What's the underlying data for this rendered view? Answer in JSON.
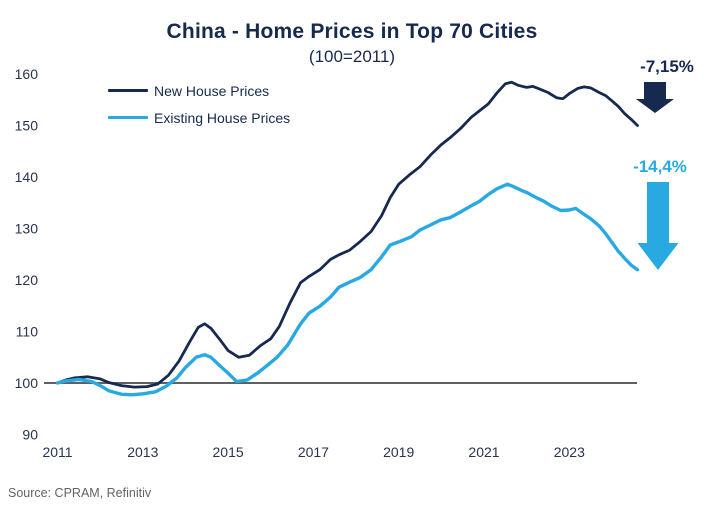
{
  "colors": {
    "navy": "#16294e",
    "cyan": "#29a9e1",
    "baseline_gray": "#5f6062",
    "axis_text": "#27334f",
    "source_text": "#646464",
    "background": "#ffffff"
  },
  "source": "Source: CPRAM, Refinitiv",
  "chart_data": {
    "type": "line",
    "title": "China - Home Prices in Top 70 Cities",
    "subtitle": "(100=2011)",
    "xlabel": "",
    "ylabel": "",
    "xlim": [
      2010.85,
      2024.85
    ],
    "ylim": [
      90,
      160
    ],
    "xticks": [
      2011,
      2013,
      2015,
      2017,
      2019,
      2021,
      2023
    ],
    "yticks": [
      90,
      100,
      110,
      120,
      130,
      140,
      150,
      160
    ],
    "grid": false,
    "legend_position": "top-left",
    "baseline_value": 100,
    "annotations": [
      {
        "text": "-7,15%",
        "series": "New House Prices",
        "color": "#16294e"
      },
      {
        "text": "-14,4%",
        "series": "Existing House Prices",
        "color": "#29a9e1"
      }
    ],
    "series": [
      {
        "name": "New House Prices",
        "color": "#16294e",
        "line_width": 2.8,
        "data": [
          [
            2011.0,
            100.0
          ],
          [
            2011.2,
            100.6
          ],
          [
            2011.4,
            101.0
          ],
          [
            2011.7,
            101.2
          ],
          [
            2012.0,
            100.8
          ],
          [
            2012.2,
            100.1
          ],
          [
            2012.5,
            99.5
          ],
          [
            2012.8,
            99.2
          ],
          [
            2013.1,
            99.3
          ],
          [
            2013.35,
            99.8
          ],
          [
            2013.6,
            101.5
          ],
          [
            2013.85,
            104.3
          ],
          [
            2014.1,
            108.0
          ],
          [
            2014.3,
            110.8
          ],
          [
            2014.45,
            111.5
          ],
          [
            2014.6,
            110.6
          ],
          [
            2014.8,
            108.5
          ],
          [
            2015.0,
            106.3
          ],
          [
            2015.25,
            105.0
          ],
          [
            2015.5,
            105.4
          ],
          [
            2015.75,
            107.2
          ],
          [
            2016.0,
            108.6
          ],
          [
            2016.2,
            111.0
          ],
          [
            2016.45,
            115.5
          ],
          [
            2016.7,
            119.5
          ],
          [
            2016.9,
            120.7
          ],
          [
            2017.15,
            122.0
          ],
          [
            2017.4,
            124.0
          ],
          [
            2017.6,
            124.9
          ],
          [
            2017.85,
            125.8
          ],
          [
            2018.1,
            127.5
          ],
          [
            2018.35,
            129.4
          ],
          [
            2018.6,
            132.5
          ],
          [
            2018.8,
            136.0
          ],
          [
            2019.0,
            138.6
          ],
          [
            2019.25,
            140.4
          ],
          [
            2019.5,
            142.0
          ],
          [
            2019.75,
            144.3
          ],
          [
            2020.0,
            146.3
          ],
          [
            2020.2,
            147.6
          ],
          [
            2020.45,
            149.4
          ],
          [
            2020.7,
            151.6
          ],
          [
            2020.9,
            152.9
          ],
          [
            2021.1,
            154.2
          ],
          [
            2021.3,
            156.3
          ],
          [
            2021.5,
            158.1
          ],
          [
            2021.65,
            158.4
          ],
          [
            2021.8,
            157.8
          ],
          [
            2022.0,
            157.4
          ],
          [
            2022.15,
            157.6
          ],
          [
            2022.3,
            157.1
          ],
          [
            2022.5,
            156.4
          ],
          [
            2022.7,
            155.4
          ],
          [
            2022.85,
            155.2
          ],
          [
            2023.0,
            156.2
          ],
          [
            2023.2,
            157.2
          ],
          [
            2023.35,
            157.5
          ],
          [
            2023.5,
            157.3
          ],
          [
            2023.7,
            156.4
          ],
          [
            2023.85,
            155.8
          ],
          [
            2024.0,
            154.8
          ],
          [
            2024.15,
            153.7
          ],
          [
            2024.3,
            152.3
          ],
          [
            2024.45,
            151.2
          ],
          [
            2024.6,
            150.0
          ]
        ]
      },
      {
        "name": "Existing House Prices",
        "color": "#29a9e1",
        "line_width": 3.4,
        "data": [
          [
            2011.0,
            100.0
          ],
          [
            2011.2,
            100.4
          ],
          [
            2011.5,
            100.7
          ],
          [
            2011.8,
            100.3
          ],
          [
            2012.0,
            99.5
          ],
          [
            2012.2,
            98.5
          ],
          [
            2012.5,
            97.8
          ],
          [
            2012.75,
            97.7
          ],
          [
            2013.0,
            97.9
          ],
          [
            2013.3,
            98.3
          ],
          [
            2013.55,
            99.4
          ],
          [
            2013.8,
            101.0
          ],
          [
            2014.0,
            103.0
          ],
          [
            2014.25,
            105.0
          ],
          [
            2014.45,
            105.5
          ],
          [
            2014.6,
            105.0
          ],
          [
            2014.8,
            103.4
          ],
          [
            2015.0,
            101.9
          ],
          [
            2015.2,
            100.3
          ],
          [
            2015.45,
            100.6
          ],
          [
            2015.7,
            102.0
          ],
          [
            2015.9,
            103.3
          ],
          [
            2016.15,
            105.0
          ],
          [
            2016.4,
            107.4
          ],
          [
            2016.7,
            111.5
          ],
          [
            2016.9,
            113.6
          ],
          [
            2017.15,
            114.9
          ],
          [
            2017.4,
            116.7
          ],
          [
            2017.6,
            118.6
          ],
          [
            2017.85,
            119.6
          ],
          [
            2018.1,
            120.5
          ],
          [
            2018.35,
            122.0
          ],
          [
            2018.6,
            124.5
          ],
          [
            2018.8,
            126.8
          ],
          [
            2019.0,
            127.4
          ],
          [
            2019.3,
            128.4
          ],
          [
            2019.5,
            129.7
          ],
          [
            2019.75,
            130.7
          ],
          [
            2020.0,
            131.7
          ],
          [
            2020.2,
            132.1
          ],
          [
            2020.45,
            133.2
          ],
          [
            2020.7,
            134.4
          ],
          [
            2020.9,
            135.3
          ],
          [
            2021.1,
            136.6
          ],
          [
            2021.3,
            137.7
          ],
          [
            2021.55,
            138.6
          ],
          [
            2021.7,
            138.1
          ],
          [
            2021.85,
            137.5
          ],
          [
            2022.0,
            137.0
          ],
          [
            2022.2,
            136.1
          ],
          [
            2022.4,
            135.3
          ],
          [
            2022.6,
            134.3
          ],
          [
            2022.8,
            133.5
          ],
          [
            2023.0,
            133.6
          ],
          [
            2023.15,
            133.9
          ],
          [
            2023.3,
            133.0
          ],
          [
            2023.5,
            131.9
          ],
          [
            2023.7,
            130.5
          ],
          [
            2023.85,
            129.0
          ],
          [
            2024.0,
            127.3
          ],
          [
            2024.15,
            125.6
          ],
          [
            2024.3,
            124.2
          ],
          [
            2024.45,
            122.9
          ],
          [
            2024.6,
            122.0
          ]
        ]
      }
    ]
  }
}
